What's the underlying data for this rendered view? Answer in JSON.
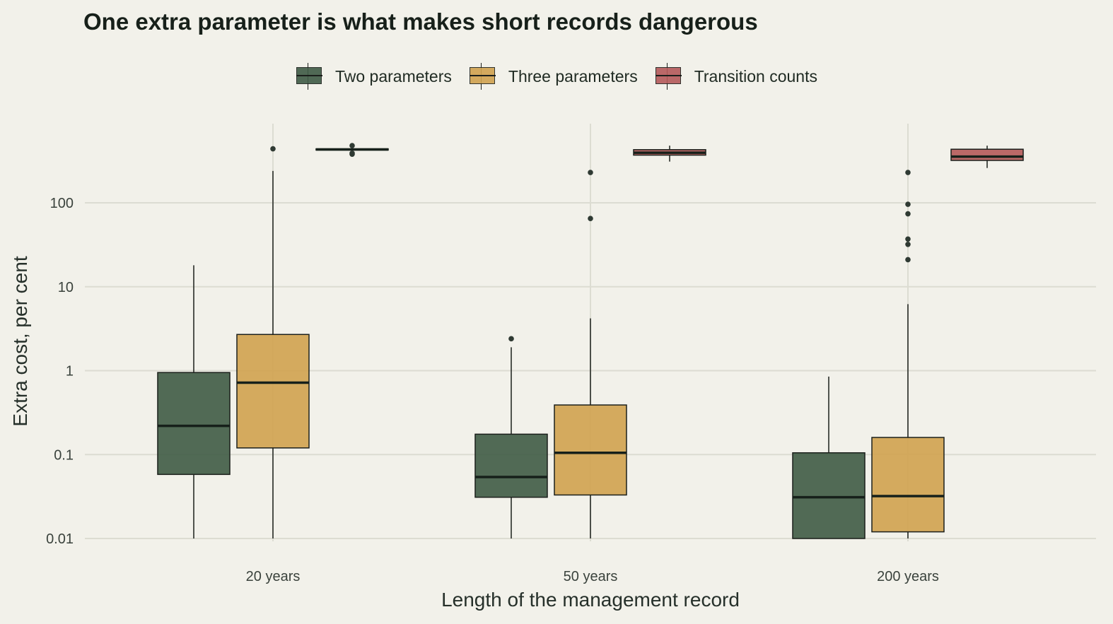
{
  "chart_data": {
    "type": "box",
    "title": "One extra parameter is what makes short records dangerous",
    "xlabel": "Length of the management record",
    "ylabel": "Extra cost, per cent",
    "y_scale": "log10",
    "ylim": [
      0.01,
      600
    ],
    "y_ticks": [
      0.01,
      0.1,
      1,
      10,
      100
    ],
    "y_tick_labels": [
      "0.01",
      "0.1",
      "1",
      "10",
      "100"
    ],
    "categories": [
      "20 years",
      "50 years",
      "200 years"
    ],
    "legend_position": "top",
    "grid": true,
    "series": [
      {
        "name": "Two parameters",
        "color": "#3f5b45",
        "boxes": [
          {
            "min": 0.01,
            "q1": 0.058,
            "median": 0.22,
            "q3": 0.95,
            "max": 18,
            "outliers": []
          },
          {
            "min": 0.01,
            "q1": 0.031,
            "median": 0.054,
            "q3": 0.175,
            "max": 1.9,
            "outliers": [
              2.4
            ]
          },
          {
            "min": 0.01,
            "q1": 0.01,
            "median": 0.031,
            "q3": 0.105,
            "max": 0.85,
            "outliers": []
          }
        ]
      },
      {
        "name": "Three parameters",
        "color": "#d0a24f",
        "boxes": [
          {
            "min": 0.01,
            "q1": 0.12,
            "median": 0.72,
            "q3": 2.7,
            "max": 240,
            "outliers": [
              440
            ]
          },
          {
            "min": 0.01,
            "q1": 0.033,
            "median": 0.105,
            "q3": 0.39,
            "max": 4.2,
            "outliers": [
              65,
              230
            ]
          },
          {
            "min": 0.01,
            "q1": 0.012,
            "median": 0.032,
            "q3": 0.16,
            "max": 6.2,
            "outliers": [
              21,
              32,
              37,
              74,
              96,
              230
            ]
          }
        ]
      },
      {
        "name": "Transition counts",
        "color": "#b55a5a",
        "boxes": [
          {
            "min": 420,
            "q1": 425,
            "median": 432,
            "q3": 440,
            "max": 448,
            "outliers": [
              380,
              390,
              480
            ]
          },
          {
            "min": 310,
            "q1": 370,
            "median": 395,
            "q3": 430,
            "max": 480,
            "outliers": []
          },
          {
            "min": 260,
            "q1": 320,
            "median": 355,
            "q3": 435,
            "max": 480,
            "outliers": []
          }
        ]
      }
    ]
  }
}
